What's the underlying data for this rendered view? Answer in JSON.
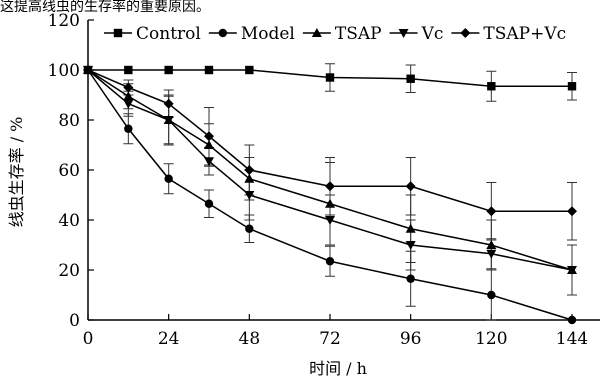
{
  "page": {
    "top_caption": "这提高线虫的生存率的重要原因。"
  },
  "chart_data": {
    "type": "line",
    "xlabel": "时间 / h",
    "ylabel": "线虫生存率 / %",
    "x": [
      0,
      12,
      24,
      36,
      48,
      72,
      96,
      120,
      144
    ],
    "xticks": [
      0,
      24,
      48,
      72,
      96,
      120,
      144
    ],
    "yticks": [
      0,
      20,
      40,
      60,
      80,
      100,
      120
    ],
    "xlim": [
      0,
      144
    ],
    "ylim": [
      0,
      120
    ],
    "grid": false,
    "legend_position": "top",
    "series": [
      {
        "name": "Control",
        "marker": "square",
        "x": [
          0,
          12,
          24,
          36,
          48,
          72,
          96,
          120,
          144
        ],
        "values": [
          100,
          100,
          100,
          100,
          100,
          97,
          96.5,
          93.5,
          93.5
        ],
        "errors": [
          0,
          0,
          0,
          0,
          0,
          5.5,
          5.5,
          6,
          5.5
        ]
      },
      {
        "name": "Model",
        "marker": "circle",
        "x": [
          0,
          12,
          24,
          36,
          48,
          72,
          96,
          120,
          144
        ],
        "values": [
          100,
          76.5,
          56.5,
          46.5,
          36.5,
          23.5,
          16.5,
          10,
          0
        ],
        "errors": [
          0,
          6,
          6,
          5.5,
          5.5,
          6,
          11,
          10,
          0
        ]
      },
      {
        "name": "TSAP",
        "marker": "triangle-up",
        "x": [
          0,
          12,
          24,
          36,
          48,
          72,
          96,
          120,
          144
        ],
        "values": [
          100,
          89.5,
          80,
          70,
          56.5,
          46.5,
          36.5,
          30,
          20
        ],
        "errors": [
          0,
          5,
          9.5,
          8.5,
          8.5,
          16.5,
          13.5,
          10,
          10
        ]
      },
      {
        "name": "Vc",
        "marker": "triangle-down",
        "x": [
          0,
          12,
          24,
          36,
          48,
          72,
          96,
          120,
          144
        ],
        "values": [
          100,
          86.5,
          80,
          63.5,
          50,
          40,
          30,
          26.5,
          20
        ],
        "errors": [
          0,
          5,
          10,
          5.5,
          10,
          10,
          10,
          6,
          10
        ]
      },
      {
        "name": "TSAP+Vc",
        "marker": "diamond",
        "x": [
          0,
          12,
          24,
          36,
          48,
          72,
          96,
          120,
          144
        ],
        "values": [
          100,
          93,
          86.5,
          73.5,
          60,
          53.5,
          53.5,
          43.5,
          43.5
        ],
        "errors": [
          0,
          3,
          5.5,
          11.5,
          10,
          11.5,
          11.5,
          11.5,
          11.5
        ]
      }
    ]
  }
}
